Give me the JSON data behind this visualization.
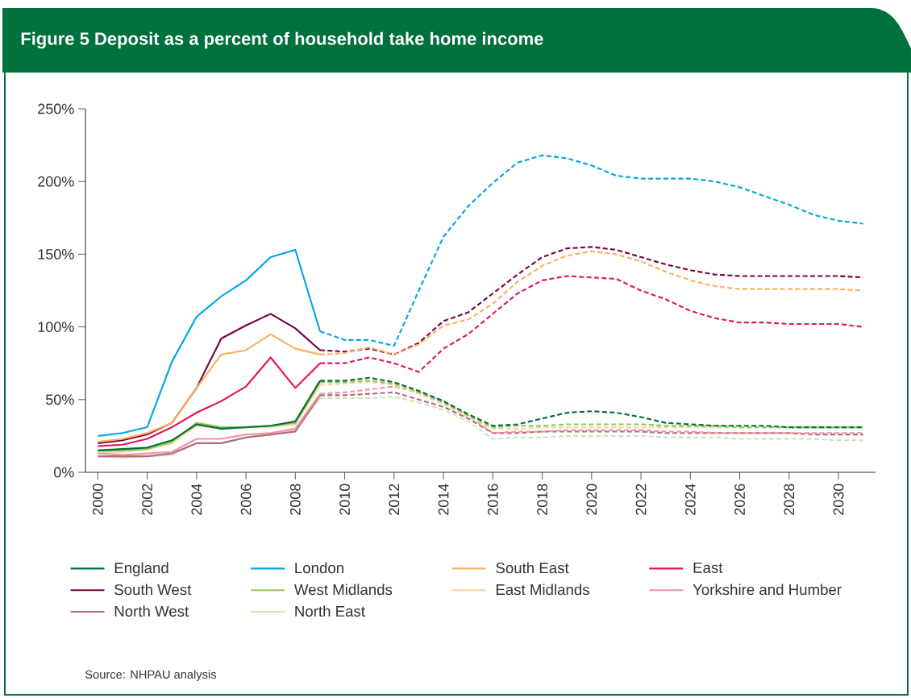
{
  "chart_data": {
    "type": "line",
    "title": "Figure 5 Deposit as a percent of household take home income",
    "annotations": [
      "Source: NHPAU analysis"
    ],
    "xlim": [
      1999.5,
      2031.5
    ],
    "xticks": [
      2000,
      2002,
      2004,
      2006,
      2008,
      2010,
      2012,
      2014,
      2016,
      2018,
      2020,
      2022,
      2024,
      2026,
      2028,
      2030
    ],
    "ylim": [
      0,
      250
    ],
    "yticks": [
      {
        "value": 0,
        "label": "0%"
      },
      {
        "value": 50,
        "label": "50%"
      },
      {
        "value": 100,
        "label": "100%"
      },
      {
        "value": 150,
        "label": "150%"
      },
      {
        "value": 200,
        "label": "200%"
      },
      {
        "value": 250,
        "label": "250%"
      }
    ],
    "grid": false,
    "legend": "bottom",
    "series": [
      {
        "name": "England",
        "color": "#00703c",
        "line_style": "solid",
        "x": [
          2000,
          2001,
          2002,
          2003,
          2004,
          2005,
          2006,
          2007,
          2008,
          2009
        ],
        "values": [
          15,
          16,
          17,
          22,
          33,
          30,
          31,
          32,
          35,
          63
        ]
      },
      {
        "name": "London",
        "color": "#00a6e2",
        "line_style": "solid",
        "x": [
          2000,
          2001,
          2002,
          2003,
          2004,
          2005,
          2006,
          2007,
          2008,
          2009
        ],
        "values": [
          25,
          27,
          31,
          76,
          107,
          121,
          132,
          148,
          153,
          97
        ]
      },
      {
        "name": "South East",
        "color": "#fbb161",
        "line_style": "solid",
        "x": [
          2000,
          2001,
          2002,
          2003,
          2004,
          2005,
          2006,
          2007,
          2008,
          2009
        ],
        "values": [
          21,
          23,
          27,
          34,
          58,
          81,
          84,
          95,
          85,
          81
        ]
      },
      {
        "name": "East",
        "color": "#e5145f",
        "line_style": "solid",
        "x": [
          2000,
          2001,
          2002,
          2003,
          2004,
          2005,
          2006,
          2007,
          2008,
          2009
        ],
        "values": [
          18,
          19,
          23,
          31,
          41,
          49,
          59,
          79,
          58,
          75
        ]
      },
      {
        "name": "South West",
        "color": "#7a0041",
        "line_style": "solid",
        "x": [
          2000,
          2001,
          2002,
          2003,
          2004,
          2005,
          2006,
          2007,
          2008,
          2009
        ],
        "values": [
          20,
          22,
          26,
          34,
          58,
          92,
          101,
          109,
          99,
          84
        ]
      },
      {
        "name": "West Midlands",
        "color": "#96c85a",
        "line_style": "solid",
        "x": [
          2000,
          2001,
          2002,
          2003,
          2004,
          2005,
          2006,
          2007,
          2008,
          2009
        ],
        "values": [
          15,
          15,
          16,
          21,
          34,
          31,
          31,
          32,
          34,
          62
        ]
      },
      {
        "name": "East Midlands",
        "color": "#fdd3a0",
        "line_style": "solid",
        "x": [
          2000,
          2001,
          2002,
          2003,
          2004,
          2005,
          2006,
          2007,
          2008,
          2009
        ],
        "values": [
          14,
          14,
          16,
          20,
          32,
          30,
          31,
          31,
          33,
          60
        ]
      },
      {
        "name": "Yorkshire and Humber",
        "color": "#f0949e",
        "line_style": "solid",
        "x": [
          2000,
          2001,
          2002,
          2003,
          2004,
          2005,
          2006,
          2007,
          2008,
          2009
        ],
        "values": [
          13,
          12,
          13,
          14,
          23,
          23,
          26,
          27,
          30,
          54
        ]
      },
      {
        "name": "North West",
        "color": "#b0688a",
        "line_style": "solid",
        "x": [
          2000,
          2001,
          2002,
          2003,
          2004,
          2005,
          2006,
          2007,
          2008,
          2009
        ],
        "values": [
          11,
          11,
          11,
          13,
          20,
          20,
          24,
          26,
          28,
          53
        ]
      },
      {
        "name": "North East",
        "color": "#cce6b0",
        "line_style": "solid",
        "x": [
          2000,
          2001,
          2002,
          2003,
          2004,
          2005,
          2006,
          2007,
          2008,
          2009
        ],
        "values": [
          11,
          10,
          11,
          12,
          20,
          20,
          24,
          26,
          29,
          51
        ]
      },
      {
        "color": "#00703c",
        "line_style": "dashed",
        "x": [
          2009,
          2010,
          2011,
          2012,
          2013,
          2014,
          2015,
          2016,
          2017,
          2018,
          2019,
          2020,
          2021,
          2022,
          2023,
          2024,
          2025,
          2026,
          2027,
          2028,
          2029,
          2030,
          2031
        ],
        "values": [
          63,
          63,
          65,
          62,
          56,
          49,
          40,
          32,
          33,
          37,
          41,
          42,
          41,
          38,
          34,
          33,
          32,
          32,
          32,
          31,
          31,
          31,
          31
        ]
      },
      {
        "color": "#00a6e2",
        "line_style": "dashed",
        "x": [
          2009,
          2010,
          2011,
          2012,
          2013,
          2014,
          2015,
          2016,
          2017,
          2018,
          2019,
          2020,
          2021,
          2022,
          2023,
          2024,
          2025,
          2026,
          2027,
          2028,
          2029,
          2030,
          2031
        ],
        "values": [
          97,
          91,
          91,
          87,
          125,
          162,
          183,
          199,
          213,
          218,
          216,
          211,
          204,
          202,
          202,
          202,
          200,
          196,
          190,
          184,
          177,
          173,
          171
        ]
      },
      {
        "color": "#fbb161",
        "line_style": "dashed",
        "x": [
          2009,
          2010,
          2011,
          2012,
          2013,
          2014,
          2015,
          2016,
          2017,
          2018,
          2019,
          2020,
          2021,
          2022,
          2023,
          2024,
          2025,
          2026,
          2027,
          2028,
          2029,
          2030,
          2031
        ],
        "values": [
          81,
          82,
          86,
          81,
          88,
          101,
          105,
          116,
          131,
          142,
          149,
          152,
          150,
          145,
          138,
          132,
          128,
          126,
          126,
          126,
          126,
          126,
          125
        ]
      },
      {
        "color": "#e5145f",
        "line_style": "dashed",
        "x": [
          2009,
          2010,
          2011,
          2012,
          2013,
          2014,
          2015,
          2016,
          2017,
          2018,
          2019,
          2020,
          2021,
          2022,
          2023,
          2024,
          2025,
          2026,
          2027,
          2028,
          2029,
          2030,
          2031
        ],
        "values": [
          75,
          75,
          79,
          75,
          69,
          85,
          95,
          109,
          123,
          132,
          135,
          134,
          133,
          125,
          119,
          111,
          106,
          103,
          103,
          102,
          102,
          102,
          100
        ]
      },
      {
        "color": "#7a0041",
        "line_style": "dashed",
        "x": [
          2009,
          2010,
          2011,
          2012,
          2013,
          2014,
          2015,
          2016,
          2017,
          2018,
          2019,
          2020,
          2021,
          2022,
          2023,
          2024,
          2025,
          2026,
          2027,
          2028,
          2029,
          2030,
          2031
        ],
        "values": [
          84,
          83,
          85,
          81,
          89,
          104,
          110,
          123,
          136,
          148,
          154,
          155,
          153,
          148,
          143,
          139,
          136,
          135,
          135,
          135,
          135,
          135,
          134
        ]
      },
      {
        "color": "#96c85a",
        "line_style": "dashed",
        "x": [
          2009,
          2010,
          2011,
          2012,
          2013,
          2014,
          2015,
          2016,
          2017,
          2018,
          2019,
          2020,
          2021,
          2022,
          2023,
          2024,
          2025,
          2026,
          2027,
          2028,
          2029,
          2030,
          2031
        ],
        "values": [
          62,
          62,
          63,
          61,
          55,
          48,
          39,
          31,
          32,
          32,
          33,
          33,
          33,
          33,
          32,
          32,
          32,
          31,
          31,
          31,
          31,
          31,
          31
        ]
      },
      {
        "color": "#fdd3a0",
        "line_style": "dashed",
        "x": [
          2009,
          2010,
          2011,
          2012,
          2013,
          2014,
          2015,
          2016,
          2017,
          2018,
          2019,
          2020,
          2021,
          2022,
          2023,
          2024,
          2025,
          2026,
          2027,
          2028,
          2029,
          2030,
          2031
        ],
        "values": [
          60,
          61,
          62,
          60,
          54,
          47,
          38,
          30,
          30,
          31,
          31,
          31,
          31,
          31,
          31,
          31,
          31,
          31,
          31,
          31,
          31,
          31,
          31
        ]
      },
      {
        "color": "#f0949e",
        "line_style": "dashed",
        "x": [
          2009,
          2010,
          2011,
          2012,
          2013,
          2014,
          2015,
          2016,
          2017,
          2018,
          2019,
          2020,
          2021,
          2022,
          2023,
          2024,
          2025,
          2026,
          2027,
          2028,
          2029,
          2030,
          2031
        ],
        "values": [
          54,
          55,
          57,
          59,
          55,
          49,
          39,
          27,
          28,
          28,
          29,
          29,
          29,
          29,
          28,
          28,
          27,
          27,
          27,
          27,
          27,
          27,
          27
        ]
      },
      {
        "color": "#b0688a",
        "line_style": "dashed",
        "x": [
          2009,
          2010,
          2011,
          2012,
          2013,
          2014,
          2015,
          2016,
          2017,
          2018,
          2019,
          2020,
          2021,
          2022,
          2023,
          2024,
          2025,
          2026,
          2027,
          2028,
          2029,
          2030,
          2031
        ],
        "values": [
          53,
          53,
          54,
          55,
          50,
          45,
          37,
          27,
          27,
          28,
          28,
          28,
          28,
          28,
          27,
          27,
          27,
          27,
          27,
          27,
          26,
          26,
          26
        ]
      },
      {
        "color": "#cce6b0",
        "line_style": "dashed",
        "x": [
          2009,
          2010,
          2011,
          2012,
          2013,
          2014,
          2015,
          2016,
          2017,
          2018,
          2019,
          2020,
          2021,
          2022,
          2023,
          2024,
          2025,
          2026,
          2027,
          2028,
          2029,
          2030,
          2031
        ],
        "values": [
          51,
          51,
          51,
          52,
          48,
          43,
          35,
          23,
          24,
          24,
          25,
          25,
          25,
          25,
          24,
          24,
          24,
          23,
          23,
          23,
          23,
          22,
          22
        ]
      }
    ]
  }
}
